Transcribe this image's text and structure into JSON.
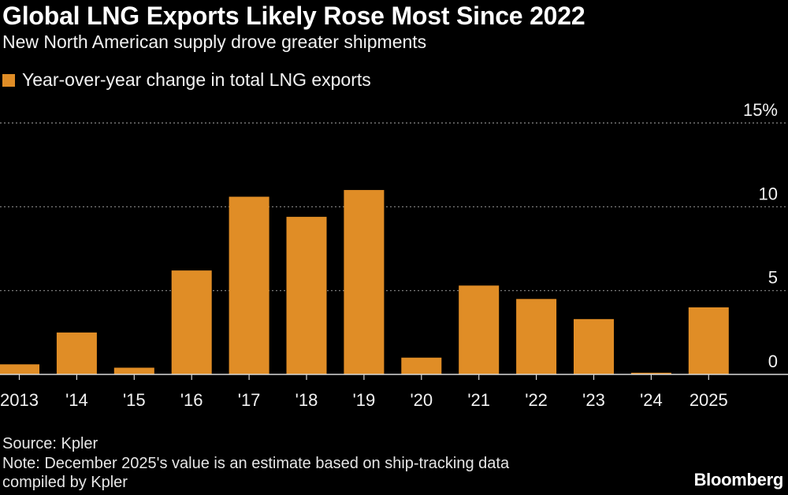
{
  "header": {
    "title": "Global LNG Exports Likely Rose Most Since 2022",
    "subtitle": "New North American supply drove greater shipments"
  },
  "footer": {
    "source": "Source: Kpler",
    "note_line1": "Note: December 2025's value is an estimate based on ship-tracking data",
    "note_line2": "compiled by Kpler",
    "brand": "Bloomberg"
  },
  "colors": {
    "bar": "#e08d26",
    "background": "#000000",
    "grid": "#8a8a8a",
    "text": "#ffffff"
  },
  "chart_data": {
    "type": "bar",
    "title": "Global LNG Exports Likely Rose Most Since 2022",
    "subtitle": "New North American supply drove greater shipments",
    "categories": [
      "2013",
      "'14",
      "'15",
      "'16",
      "'17",
      "'18",
      "'19",
      "'20",
      "'21",
      "'22",
      "'23",
      "'24",
      "2025"
    ],
    "series": [
      {
        "name": "Year-over-year change in total LNG exports",
        "values": [
          0.6,
          2.5,
          0.4,
          6.2,
          10.6,
          9.4,
          11.0,
          1.0,
          5.3,
          4.5,
          3.3,
          0.1,
          4.0
        ]
      }
    ],
    "yticks": [
      {
        "value": 0,
        "label": "0"
      },
      {
        "value": 5,
        "label": "5"
      },
      {
        "value": 10,
        "label": "10"
      },
      {
        "value": 15,
        "label": "15%"
      }
    ],
    "ylim": [
      0,
      15
    ],
    "ylabel": "",
    "xlabel": "",
    "grid": true,
    "legend": "top-left"
  }
}
